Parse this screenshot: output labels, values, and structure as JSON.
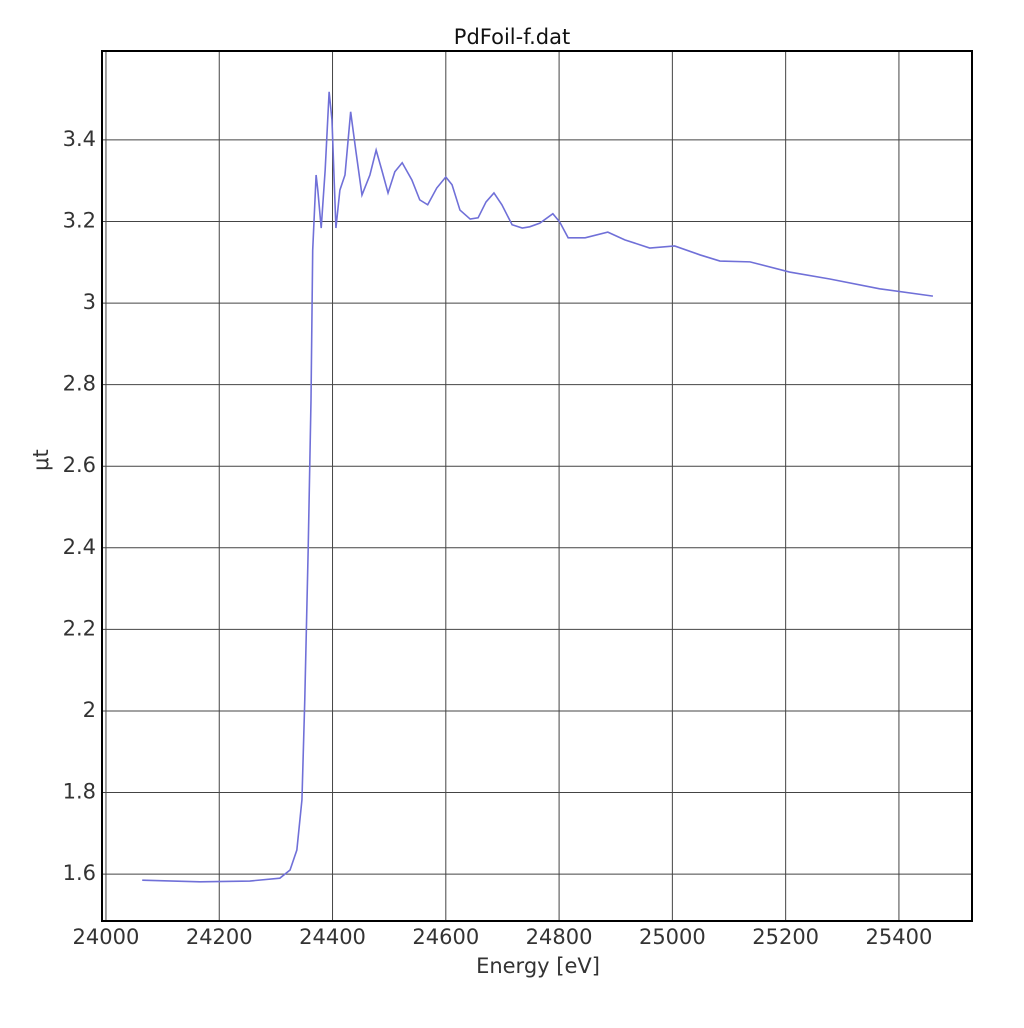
{
  "chart_data": {
    "type": "line",
    "title": "PdFoil-f.dat",
    "xlabel": "Energy [eV]",
    "ylabel": "μt",
    "x": [
      24064,
      24166,
      24254,
      24307,
      24325,
      24337,
      24346,
      24351,
      24357,
      24362,
      24365,
      24371,
      24374,
      24380,
      24387,
      24394,
      24399,
      24406,
      24413,
      24422,
      24432,
      24441,
      24452,
      24466,
      24477,
      24487,
      24498,
      24510,
      24523,
      24540,
      24554,
      24568,
      24584,
      24600,
      24611,
      24625,
      24643,
      24657,
      24671,
      24685,
      24699,
      24717,
      24735,
      24748,
      24766,
      24789,
      24801,
      24816,
      24846,
      24886,
      24916,
      24960,
      25004,
      25049,
      25084,
      25137,
      25207,
      25278,
      25366,
      25460
    ],
    "series": [
      {
        "name": "PdFoil-f.dat",
        "color": "#7070d8",
        "values": [
          1.585,
          1.581,
          1.583,
          1.59,
          1.61,
          1.659,
          1.782,
          2.027,
          2.395,
          2.762,
          3.13,
          3.314,
          3.277,
          3.184,
          3.326,
          3.518,
          3.449,
          3.184,
          3.277,
          3.314,
          3.469,
          3.375,
          3.265,
          3.314,
          3.375,
          3.326,
          3.27,
          3.322,
          3.344,
          3.302,
          3.253,
          3.241,
          3.282,
          3.309,
          3.29,
          3.228,
          3.206,
          3.209,
          3.248,
          3.27,
          3.241,
          3.192,
          3.184,
          3.187,
          3.196,
          3.219,
          3.199,
          3.16,
          3.16,
          3.174,
          3.155,
          3.135,
          3.14,
          3.118,
          3.103,
          3.101,
          3.076,
          3.059,
          3.035,
          3.017
        ]
      }
    ],
    "xlim": [
      23993,
      25529
    ],
    "ylim": [
      1.485,
      3.618
    ],
    "xticks": [
      24000,
      24200,
      24400,
      24600,
      24800,
      25000,
      25200,
      25400
    ],
    "yticks": [
      1.6,
      1.8,
      2,
      2.2,
      2.4,
      2.6,
      2.8,
      3,
      3.2,
      3.4
    ],
    "grid": true
  }
}
